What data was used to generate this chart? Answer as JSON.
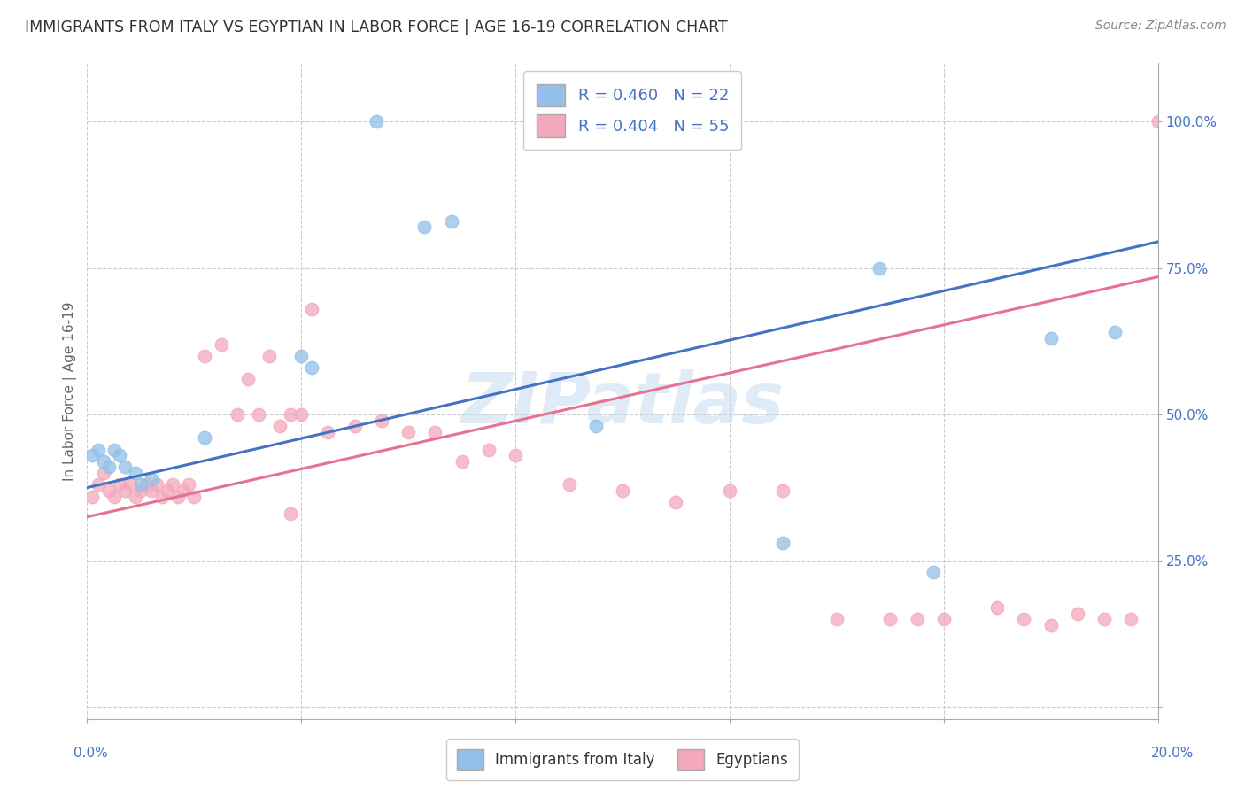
{
  "title": "IMMIGRANTS FROM ITALY VS EGYPTIAN IN LABOR FORCE | AGE 16-19 CORRELATION CHART",
  "source": "Source: ZipAtlas.com",
  "ylabel": "In Labor Force | Age 16-19",
  "xlim": [
    0.0,
    0.2
  ],
  "ylim": [
    -0.02,
    1.1
  ],
  "italy_color": "#92C0E8",
  "egypt_color": "#F4A8BC",
  "italy_line_color": "#4472C4",
  "egypt_line_color": "#E87090",
  "italy_R": 0.46,
  "egypt_R": 0.404,
  "italy_N": 22,
  "egypt_N": 55,
  "italy_trend_x": [
    0.0,
    0.2
  ],
  "italy_trend_y": [
    0.375,
    0.795
  ],
  "egypt_trend_x": [
    0.0,
    0.2
  ],
  "egypt_trend_y": [
    0.325,
    0.735
  ],
  "italy_x": [
    0.054,
    0.001,
    0.002,
    0.003,
    0.004,
    0.005,
    0.006,
    0.007,
    0.009,
    0.01,
    0.012,
    0.063,
    0.068,
    0.04,
    0.042,
    0.13,
    0.148,
    0.158,
    0.18,
    0.192,
    0.095,
    0.022
  ],
  "italy_y": [
    1.0,
    0.43,
    0.44,
    0.42,
    0.41,
    0.44,
    0.43,
    0.41,
    0.4,
    0.38,
    0.39,
    0.82,
    0.83,
    0.6,
    0.58,
    0.28,
    0.75,
    0.23,
    0.63,
    0.64,
    0.48,
    0.46
  ],
  "egypt_x": [
    0.001,
    0.002,
    0.003,
    0.004,
    0.005,
    0.006,
    0.007,
    0.008,
    0.009,
    0.01,
    0.011,
    0.012,
    0.013,
    0.014,
    0.015,
    0.016,
    0.017,
    0.018,
    0.019,
    0.02,
    0.022,
    0.025,
    0.028,
    0.03,
    0.032,
    0.034,
    0.036,
    0.038,
    0.04,
    0.045,
    0.05,
    0.055,
    0.06,
    0.065,
    0.07,
    0.075,
    0.08,
    0.09,
    0.1,
    0.11,
    0.12,
    0.13,
    0.14,
    0.15,
    0.155,
    0.16,
    0.17,
    0.175,
    0.18,
    0.185,
    0.19,
    0.195,
    0.2,
    0.038,
    0.042
  ],
  "egypt_y": [
    0.36,
    0.38,
    0.4,
    0.37,
    0.36,
    0.38,
    0.37,
    0.38,
    0.36,
    0.37,
    0.38,
    0.37,
    0.38,
    0.36,
    0.37,
    0.38,
    0.36,
    0.37,
    0.38,
    0.36,
    0.6,
    0.62,
    0.5,
    0.56,
    0.5,
    0.6,
    0.48,
    0.5,
    0.5,
    0.47,
    0.48,
    0.49,
    0.47,
    0.47,
    0.42,
    0.44,
    0.43,
    0.38,
    0.37,
    0.35,
    0.37,
    0.37,
    0.15,
    0.15,
    0.15,
    0.15,
    0.17,
    0.15,
    0.14,
    0.16,
    0.15,
    0.15,
    1.0,
    0.33,
    0.68
  ]
}
